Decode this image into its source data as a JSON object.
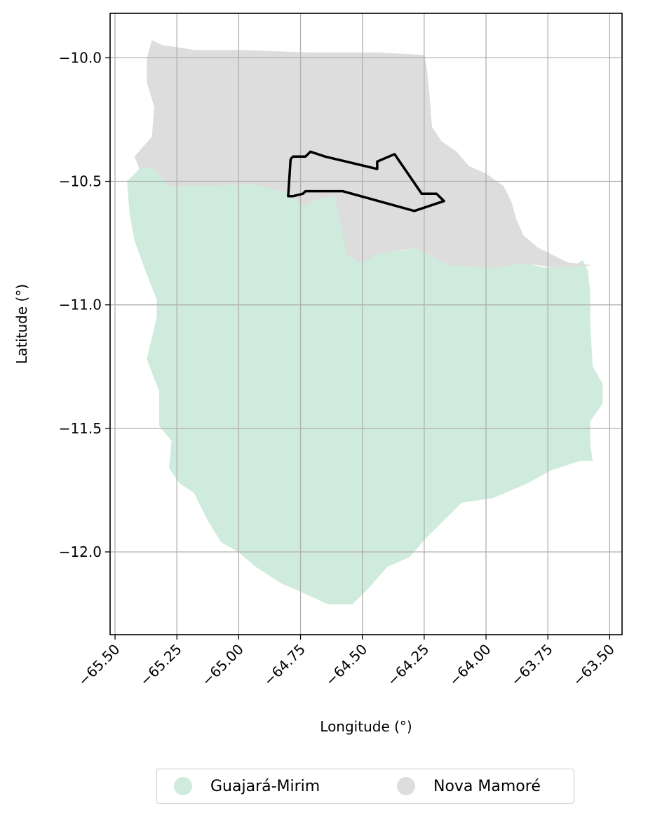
{
  "chart_data": {
    "type": "map",
    "xlabel": "Longitude (°)",
    "ylabel": "Latitude (°)",
    "xlim": [
      -65.52,
      -63.45
    ],
    "ylim": [
      -12.335,
      -9.82
    ],
    "x_ticks": [
      -65.5,
      -65.25,
      -65.0,
      -64.75,
      -64.5,
      -64.25,
      -64.0,
      -63.75,
      -63.5
    ],
    "x_tick_labels": [
      "−65.50",
      "−65.25",
      "−65.00",
      "−64.75",
      "−64.50",
      "−64.25",
      "−64.00",
      "−63.75",
      "−63.50"
    ],
    "y_ticks": [
      -10.0,
      -10.5,
      -11.0,
      -11.5,
      -12.0
    ],
    "y_tick_labels": [
      "−10.0",
      "−10.5",
      "−11.0",
      "−11.5",
      "−12.0"
    ],
    "grid": true,
    "legend_position": "bottom-center",
    "regions": [
      {
        "name": "Guajará-Mirim",
        "color": "#cfebdd",
        "polygon": [
          [
            -65.35,
            -10.44
          ],
          [
            -65.28,
            -10.52
          ],
          [
            -64.94,
            -10.51
          ],
          [
            -64.79,
            -10.55
          ],
          [
            -64.74,
            -10.6
          ],
          [
            -64.68,
            -10.57
          ],
          [
            -64.61,
            -10.56
          ],
          [
            -64.56,
            -10.8
          ],
          [
            -64.5,
            -10.83
          ],
          [
            -64.44,
            -10.79
          ],
          [
            -64.32,
            -10.78
          ],
          [
            -64.28,
            -10.77
          ],
          [
            -64.15,
            -10.84
          ],
          [
            -63.98,
            -10.85
          ],
          [
            -63.84,
            -10.83
          ],
          [
            -63.77,
            -10.85
          ],
          [
            -63.71,
            -10.85
          ],
          [
            -63.64,
            -10.84
          ],
          [
            -63.61,
            -10.82
          ],
          [
            -63.59,
            -10.86
          ],
          [
            -63.58,
            -10.95
          ],
          [
            -63.58,
            -11.08
          ],
          [
            -63.57,
            -11.25
          ],
          [
            -63.53,
            -11.32
          ],
          [
            -63.53,
            -11.4
          ],
          [
            -63.58,
            -11.47
          ],
          [
            -63.58,
            -11.57
          ],
          [
            -63.57,
            -11.63
          ],
          [
            -63.62,
            -11.63
          ],
          [
            -63.74,
            -11.67
          ],
          [
            -63.83,
            -11.72
          ],
          [
            -63.97,
            -11.78
          ],
          [
            -64.1,
            -11.8
          ],
          [
            -64.18,
            -11.88
          ],
          [
            -64.25,
            -11.95
          ],
          [
            -64.31,
            -12.02
          ],
          [
            -64.4,
            -12.06
          ],
          [
            -64.48,
            -12.15
          ],
          [
            -64.54,
            -12.21
          ],
          [
            -64.64,
            -12.21
          ],
          [
            -64.75,
            -12.16
          ],
          [
            -64.82,
            -12.13
          ],
          [
            -64.93,
            -12.06
          ],
          [
            -65.0,
            -12.0
          ],
          [
            -65.07,
            -11.96
          ],
          [
            -65.12,
            -11.88
          ],
          [
            -65.18,
            -11.76
          ],
          [
            -65.24,
            -11.72
          ],
          [
            -65.28,
            -11.66
          ],
          [
            -65.27,
            -11.55
          ],
          [
            -65.32,
            -11.49
          ],
          [
            -65.32,
            -11.35
          ],
          [
            -65.37,
            -11.22
          ],
          [
            -65.33,
            -11.05
          ],
          [
            -65.33,
            -10.98
          ],
          [
            -65.38,
            -10.85
          ],
          [
            -65.42,
            -10.74
          ],
          [
            -65.44,
            -10.63
          ],
          [
            -65.45,
            -10.5
          ],
          [
            -65.4,
            -10.45
          ]
        ]
      },
      {
        "name": "Nova Mamoré",
        "color": "#dddddd",
        "polygon": [
          [
            -65.35,
            -9.93
          ],
          [
            -65.31,
            -9.95
          ],
          [
            -65.24,
            -9.96
          ],
          [
            -65.18,
            -9.97
          ],
          [
            -64.98,
            -9.97
          ],
          [
            -64.71,
            -9.98
          ],
          [
            -64.43,
            -9.98
          ],
          [
            -64.25,
            -9.99
          ],
          [
            -64.24,
            -10.05
          ],
          [
            -64.23,
            -10.15
          ],
          [
            -64.22,
            -10.28
          ],
          [
            -64.18,
            -10.34
          ],
          [
            -64.12,
            -10.38
          ],
          [
            -64.07,
            -10.44
          ],
          [
            -64.0,
            -10.47
          ],
          [
            -63.93,
            -10.52
          ],
          [
            -63.9,
            -10.58
          ],
          [
            -63.88,
            -10.65
          ],
          [
            -63.85,
            -10.72
          ],
          [
            -63.79,
            -10.77
          ],
          [
            -63.73,
            -10.8
          ],
          [
            -63.67,
            -10.83
          ],
          [
            -63.58,
            -10.84
          ],
          [
            -63.71,
            -10.85
          ],
          [
            -63.84,
            -10.83
          ],
          [
            -63.98,
            -10.85
          ],
          [
            -64.15,
            -10.84
          ],
          [
            -64.28,
            -10.77
          ],
          [
            -64.44,
            -10.79
          ],
          [
            -64.5,
            -10.83
          ],
          [
            -64.56,
            -10.8
          ],
          [
            -64.61,
            -10.56
          ],
          [
            -64.68,
            -10.57
          ],
          [
            -64.74,
            -10.6
          ],
          [
            -64.79,
            -10.55
          ],
          [
            -64.94,
            -10.51
          ],
          [
            -65.28,
            -10.52
          ],
          [
            -65.35,
            -10.44
          ],
          [
            -65.4,
            -10.45
          ],
          [
            -65.42,
            -10.4
          ],
          [
            -65.35,
            -10.32
          ],
          [
            -65.34,
            -10.2
          ],
          [
            -65.37,
            -10.1
          ],
          [
            -65.37,
            -10.0
          ]
        ]
      }
    ],
    "outline": [
      [
        -64.79,
        -10.41
      ],
      [
        -64.78,
        -10.4
      ],
      [
        -64.73,
        -10.4
      ],
      [
        -64.71,
        -10.38
      ],
      [
        -64.65,
        -10.4
      ],
      [
        -64.44,
        -10.45
      ],
      [
        -64.44,
        -10.42
      ],
      [
        -64.37,
        -10.39
      ],
      [
        -64.26,
        -10.55
      ],
      [
        -64.2,
        -10.55
      ],
      [
        -64.17,
        -10.58
      ],
      [
        -64.29,
        -10.62
      ],
      [
        -64.58,
        -10.54
      ],
      [
        -64.73,
        -10.54
      ],
      [
        -64.74,
        -10.55
      ],
      [
        -64.78,
        -10.56
      ],
      [
        -64.8,
        -10.56
      ],
      [
        -64.79,
        -10.41
      ]
    ],
    "outline_color": "#000000",
    "legend": [
      {
        "label": "Guajará-Mirim",
        "color": "#cfebdd"
      },
      {
        "label": "Nova Mamoré",
        "color": "#dddddd"
      }
    ]
  }
}
